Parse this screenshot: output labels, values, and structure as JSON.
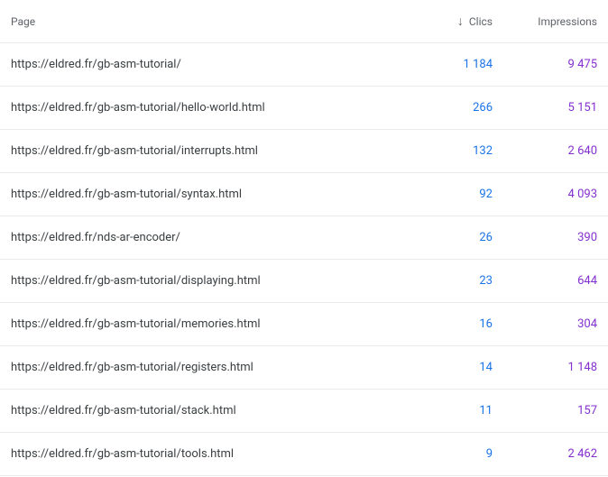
{
  "columns": {
    "page": "Page",
    "clicks": "Clics",
    "impressions": "Impressions"
  },
  "sort": {
    "column": "clicks",
    "direction": "desc",
    "arrow_glyph": "↓"
  },
  "colors": {
    "clicks": "#1a73e8",
    "impressions": "#8430ce",
    "header_text": "#5f6368",
    "row_text": "#3c4043",
    "border": "#e8eaed"
  },
  "rows": [
    {
      "page": "https://eldred.fr/gb-asm-tutorial/",
      "clicks": "1 184",
      "impressions": "9 475"
    },
    {
      "page": "https://eldred.fr/gb-asm-tutorial/hello-world.html",
      "clicks": "266",
      "impressions": "5 151"
    },
    {
      "page": "https://eldred.fr/gb-asm-tutorial/interrupts.html",
      "clicks": "132",
      "impressions": "2 640"
    },
    {
      "page": "https://eldred.fr/gb-asm-tutorial/syntax.html",
      "clicks": "92",
      "impressions": "4 093"
    },
    {
      "page": "https://eldred.fr/nds-ar-encoder/",
      "clicks": "26",
      "impressions": "390"
    },
    {
      "page": "https://eldred.fr/gb-asm-tutorial/displaying.html",
      "clicks": "23",
      "impressions": "644"
    },
    {
      "page": "https://eldred.fr/gb-asm-tutorial/memories.html",
      "clicks": "16",
      "impressions": "304"
    },
    {
      "page": "https://eldred.fr/gb-asm-tutorial/registers.html",
      "clicks": "14",
      "impressions": "1 148"
    },
    {
      "page": "https://eldred.fr/gb-asm-tutorial/stack.html",
      "clicks": "11",
      "impressions": "157"
    },
    {
      "page": "https://eldred.fr/gb-asm-tutorial/tools.html",
      "clicks": "9",
      "impressions": "2 462"
    }
  ]
}
